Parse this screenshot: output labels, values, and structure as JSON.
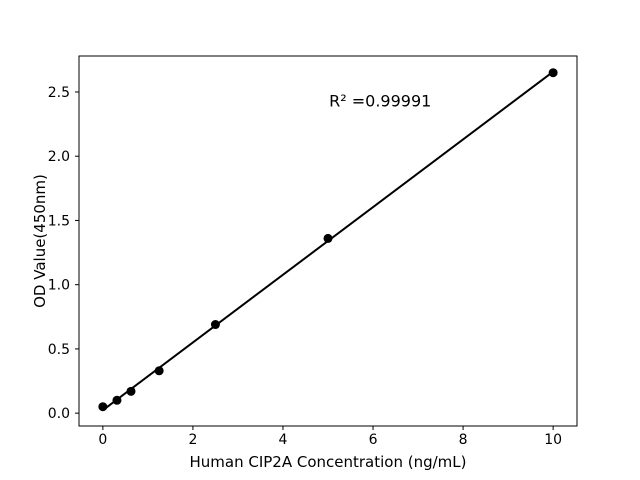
{
  "chart_data": {
    "type": "scatter",
    "x": [
      0,
      0.313,
      0.625,
      1.25,
      2.5,
      5,
      10
    ],
    "y": [
      0.05,
      0.1,
      0.17,
      0.33,
      0.69,
      1.36,
      2.65
    ],
    "trendline": true,
    "annotation": {
      "text": "R² =0.99991",
      "x": 6.16,
      "y": 2.43
    },
    "xlabel": "Human CIP2A Concentration (ng/mL)",
    "ylabel": "OD Value(450nm)",
    "xticks": [
      0,
      2,
      4,
      6,
      8,
      10
    ],
    "xtick_labels": [
      "0",
      "2",
      "4",
      "6",
      "8",
      "10"
    ],
    "yticks": [
      0,
      0.5,
      1,
      1.5,
      2,
      2.5
    ],
    "ytick_labels": [
      "0.0",
      "0.5",
      "1.0",
      "1.5",
      "2.0",
      "2.5"
    ],
    "xlim": [
      -0.53,
      10.53
    ],
    "ylim": [
      -0.1,
      2.78
    ],
    "grid": false,
    "marker_color": "#000000",
    "line_color": "#000000",
    "axis_color": "#000000",
    "background": "#ffffff"
  }
}
